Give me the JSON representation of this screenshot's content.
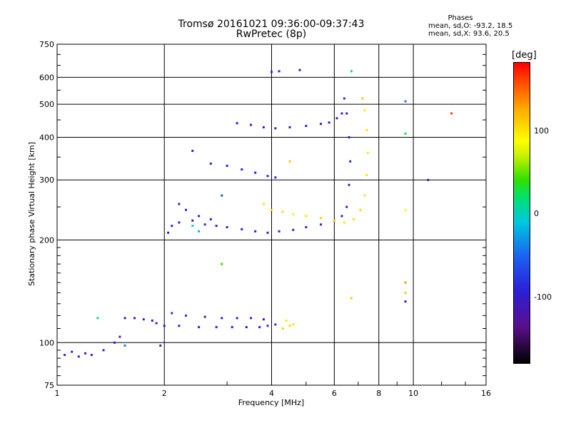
{
  "header": {
    "title_line1": "Tromsø 20161021 09:36:00-09:37:43",
    "title_line2": "RwPretec (8p)"
  },
  "phases": {
    "heading": "Phases",
    "line_o": "mean, sd,O: -93.2, 18.5",
    "line_x": "mean, sd,X:  93.6, 20.5"
  },
  "colorbar": {
    "title": "[deg]",
    "labels": [
      "100",
      "0",
      "-100"
    ]
  },
  "chart_data": {
    "type": "scatter",
    "title": "Tromsø 20161021 09:36:00-09:37:43",
    "subtitle": "RwPretec (8p)",
    "xlabel": "Frequency [MHz]",
    "ylabel": "Stationary phase Virtual Height [km]",
    "xscale": "log",
    "yscale": "log",
    "xlim": [
      1,
      16
    ],
    "ylim": [
      75,
      750
    ],
    "xticks": [
      "1",
      "2",
      "4",
      "6",
      "8",
      "10",
      "16"
    ],
    "yticks": [
      "75",
      "100",
      "200",
      "300",
      "400",
      "500",
      "600",
      "750"
    ],
    "xtick_values": [
      1,
      2,
      4,
      6,
      8,
      10,
      16
    ],
    "ytick_values": [
      75,
      100,
      200,
      300,
      400,
      500,
      600,
      750
    ],
    "grid": true,
    "colorbar_range": [
      -180,
      180
    ],
    "series": [
      {
        "points": [
          [
            1.05,
            92,
            -100
          ],
          [
            1.1,
            94,
            -110
          ],
          [
            1.15,
            91,
            -95
          ],
          [
            1.2,
            93,
            -105
          ],
          [
            1.25,
            92,
            -100
          ],
          [
            1.35,
            95,
            -110
          ],
          [
            1.45,
            100,
            -100
          ],
          [
            1.5,
            104,
            -90
          ]
        ]
      },
      {
        "points": [
          [
            1.55,
            118,
            -110
          ],
          [
            1.65,
            118,
            -105
          ],
          [
            1.75,
            117,
            -100
          ],
          [
            1.85,
            116,
            -100
          ],
          [
            1.9,
            114,
            -90
          ],
          [
            2.0,
            112,
            -100
          ],
          [
            2.2,
            112,
            -100
          ],
          [
            2.5,
            111,
            -95
          ],
          [
            2.8,
            111,
            -100
          ],
          [
            3.1,
            111,
            -100
          ],
          [
            3.4,
            111,
            -95
          ],
          [
            3.7,
            111,
            -95
          ],
          [
            3.9,
            112,
            -80
          ],
          [
            4.1,
            113,
            -90
          ]
        ]
      },
      {
        "points": [
          [
            2.1,
            122,
            -90
          ],
          [
            2.3,
            120,
            -80
          ],
          [
            2.6,
            119,
            -100
          ],
          [
            2.9,
            118,
            -100
          ],
          [
            3.2,
            118,
            -95
          ],
          [
            3.5,
            118,
            -90
          ],
          [
            3.8,
            117,
            -100
          ]
        ]
      },
      {
        "points": [
          [
            4.3,
            110,
            110
          ],
          [
            4.5,
            112,
            105
          ],
          [
            4.6,
            113,
            100
          ],
          [
            4.4,
            116,
            95
          ]
        ]
      },
      {
        "points": [
          [
            2.05,
            210,
            -100
          ],
          [
            2.1,
            220,
            -90
          ],
          [
            2.2,
            225,
            -110
          ],
          [
            2.4,
            228,
            -100
          ],
          [
            2.6,
            222,
            -90
          ],
          [
            2.8,
            220,
            -100
          ],
          [
            3.0,
            218,
            -95
          ],
          [
            3.3,
            215,
            -100
          ],
          [
            3.6,
            212,
            -100
          ],
          [
            3.9,
            210,
            -95
          ],
          [
            4.2,
            212,
            -90
          ],
          [
            4.6,
            214,
            -90
          ],
          [
            5.0,
            218,
            -95
          ],
          [
            5.5,
            222,
            -90
          ],
          [
            6.0,
            228,
            -100
          ],
          [
            6.3,
            235,
            -100
          ],
          [
            6.5,
            250,
            -95
          ],
          [
            6.6,
            290,
            -90
          ],
          [
            6.65,
            340,
            -100
          ],
          [
            6.6,
            400,
            -95
          ],
          [
            6.5,
            470,
            -100
          ],
          [
            6.4,
            520,
            -90
          ]
        ]
      },
      {
        "points": [
          [
            2.2,
            255,
            -100
          ],
          [
            2.3,
            245,
            -90
          ],
          [
            2.5,
            235,
            -100
          ],
          [
            2.7,
            230,
            -100
          ]
        ]
      },
      {
        "points": [
          [
            3.8,
            255,
            100
          ],
          [
            4.0,
            245,
            110
          ],
          [
            4.3,
            242,
            100
          ],
          [
            4.6,
            238,
            95
          ],
          [
            5.0,
            235,
            100
          ],
          [
            5.5,
            232,
            105
          ],
          [
            6.0,
            228,
            100
          ],
          [
            6.4,
            225,
            95
          ],
          [
            6.8,
            230,
            100
          ],
          [
            7.1,
            245,
            105
          ],
          [
            7.3,
            270,
            100
          ],
          [
            7.4,
            310,
            100
          ],
          [
            7.45,
            360,
            95
          ],
          [
            7.4,
            420,
            100
          ],
          [
            7.3,
            480,
            95
          ],
          [
            7.2,
            520,
            110
          ]
        ]
      },
      {
        "points": [
          [
            2.7,
            335,
            -100
          ],
          [
            3.0,
            330,
            -95
          ],
          [
            3.3,
            322,
            -100
          ],
          [
            3.6,
            315,
            -100
          ],
          [
            3.9,
            308,
            -95
          ],
          [
            4.1,
            305,
            -90
          ]
        ]
      },
      {
        "points": [
          [
            3.2,
            440,
            -100
          ],
          [
            3.5,
            435,
            -100
          ],
          [
            3.8,
            428,
            -95
          ],
          [
            4.1,
            425,
            -100
          ],
          [
            4.5,
            428,
            -100
          ],
          [
            5.0,
            432,
            -95
          ],
          [
            5.5,
            438,
            -100
          ],
          [
            5.8,
            442,
            -95
          ],
          [
            6.1,
            455,
            -90
          ],
          [
            6.3,
            470,
            -100
          ]
        ]
      },
      {
        "points": [
          [
            4.0,
            622,
            -100
          ],
          [
            4.2,
            625,
            -95
          ],
          [
            4.8,
            630,
            -110
          ]
        ]
      },
      {
        "points": [
          [
            6.7,
            625,
            0
          ],
          [
            6.7,
            135,
            110
          ],
          [
            9.5,
            510,
            -40
          ],
          [
            9.5,
            410,
            30
          ],
          [
            9.5,
            245,
            90
          ],
          [
            9.5,
            150,
            130
          ],
          [
            9.5,
            140,
            110
          ],
          [
            9.5,
            132,
            -100
          ],
          [
            11.0,
            300,
            -100
          ],
          [
            12.8,
            470,
            160
          ],
          [
            4.5,
            340,
            110
          ],
          [
            2.9,
            170,
            40
          ],
          [
            2.9,
            270,
            -60
          ],
          [
            1.3,
            118,
            20
          ],
          [
            2.4,
            365,
            -100
          ],
          [
            1.95,
            98,
            -100
          ],
          [
            1.55,
            98,
            -40
          ],
          [
            2.5,
            212,
            -20
          ],
          [
            2.4,
            220,
            0
          ]
        ]
      }
    ]
  }
}
